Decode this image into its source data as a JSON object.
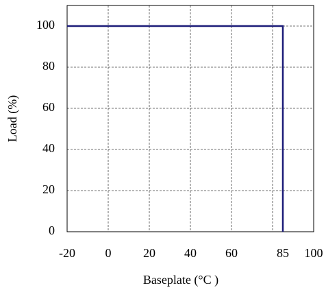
{
  "chart_data": {
    "type": "line",
    "x_label": "Baseplate (°C )",
    "y_label": "Load (%)",
    "x": [
      -20,
      85,
      85
    ],
    "series": [
      {
        "color": "#1c1c78",
        "values": [
          100,
          100,
          0
        ]
      }
    ],
    "xlim": [
      -20,
      100
    ],
    "ylim": [
      0,
      110
    ],
    "xticks": [
      -20,
      0,
      20,
      40,
      60,
      85,
      100
    ],
    "xgrid": [
      0,
      20,
      40,
      60,
      80
    ],
    "yticks": [
      0,
      20,
      40,
      60,
      80,
      100
    ],
    "grid": true
  }
}
